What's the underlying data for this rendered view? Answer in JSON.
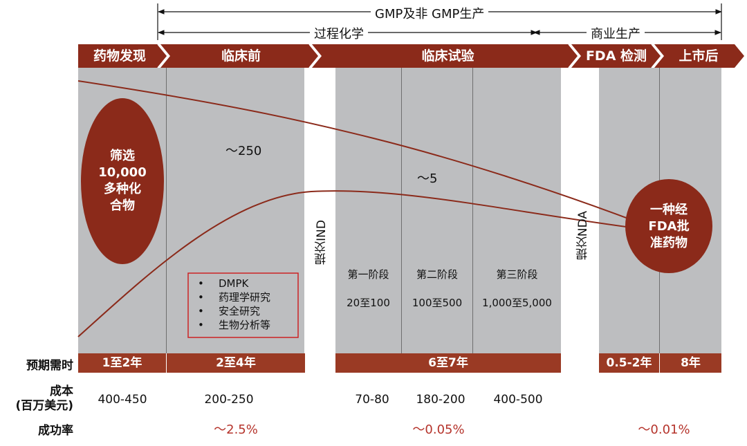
{
  "header": {
    "top_label": "GMP及非 GMP生产",
    "process_chemistry": "过程化学",
    "commercial": "商业生产"
  },
  "stages": {
    "discovery": "药物发现",
    "preclinical": "临床前",
    "clinical": "临床试验",
    "fda_review": "FDA 检测",
    "post_market": "上市后"
  },
  "screening_oval": {
    "line1": "筛选",
    "line2": "10,000",
    "line3": "多种化",
    "line4": "合物"
  },
  "approved_oval": {
    "line1": "一种经",
    "line2": "FDA批",
    "line3": "准药物"
  },
  "counts": {
    "preclinical": "～250",
    "clinical": "～5"
  },
  "submissions": {
    "ind": "提交IND",
    "nda": "提交NDA"
  },
  "preclinical_box": {
    "items": [
      "DMPK",
      "药理学研究",
      "安全研究",
      "生物分析等"
    ]
  },
  "phases": [
    {
      "name": "第一阶段",
      "subjects": "20至100"
    },
    {
      "name": "第二阶段",
      "subjects": "100至500"
    },
    {
      "name": "第三阶段",
      "subjects": "1,000至5,000"
    }
  ],
  "row_labels": {
    "duration": "预期需时",
    "cost_line1": "成本",
    "cost_line2": "(百万美元)",
    "success_rate": "成功率"
  },
  "durations": {
    "discovery": "1至2年",
    "preclinical": "2至4年",
    "clinical": "6至7年",
    "fda": "0.5-2年",
    "post_market": "8年"
  },
  "costs": {
    "discovery": "400-450",
    "preclinical": "200-250",
    "phase1": "70-80",
    "phase2": "180-200",
    "phase3": "400-500"
  },
  "success_rates": {
    "preclinical": "～2.5%",
    "clinical": "～0.05%",
    "approval": "～0.01%"
  },
  "colors": {
    "brand_dark_red": "#8b2a1a",
    "bar_red": "#9a3a24",
    "column_gray": "#bdbec0",
    "rate_red": "#b5332b"
  }
}
